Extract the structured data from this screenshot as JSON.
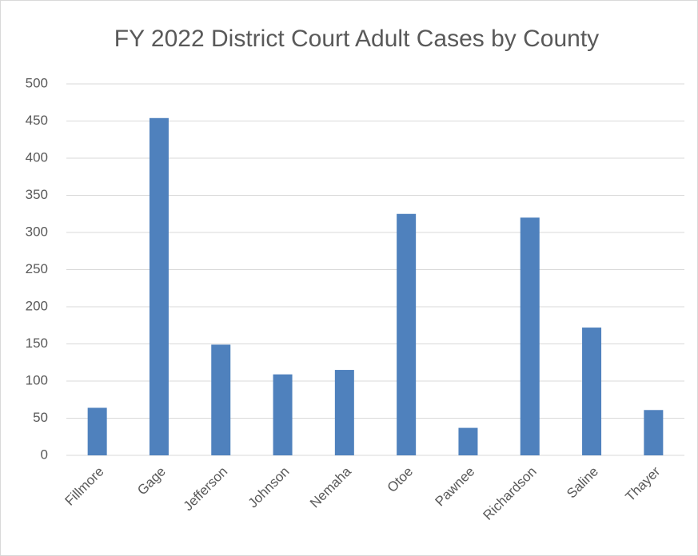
{
  "chart_data": {
    "type": "bar",
    "title": "FY 2022 District Court Adult Cases by County",
    "categories": [
      "Fillmore",
      "Gage",
      "Jefferson",
      "Johnson",
      "Nemaha",
      "Otoe",
      "Pawnee",
      "Richardson",
      "Saline",
      "Thayer"
    ],
    "values": [
      64,
      454,
      149,
      109,
      115,
      325,
      37,
      320,
      172,
      61
    ],
    "color": "#4f81bd",
    "ylim": [
      0,
      500
    ],
    "yticks": [
      0,
      50,
      100,
      150,
      200,
      250,
      300,
      350,
      400,
      450,
      500
    ],
    "grid": true
  }
}
